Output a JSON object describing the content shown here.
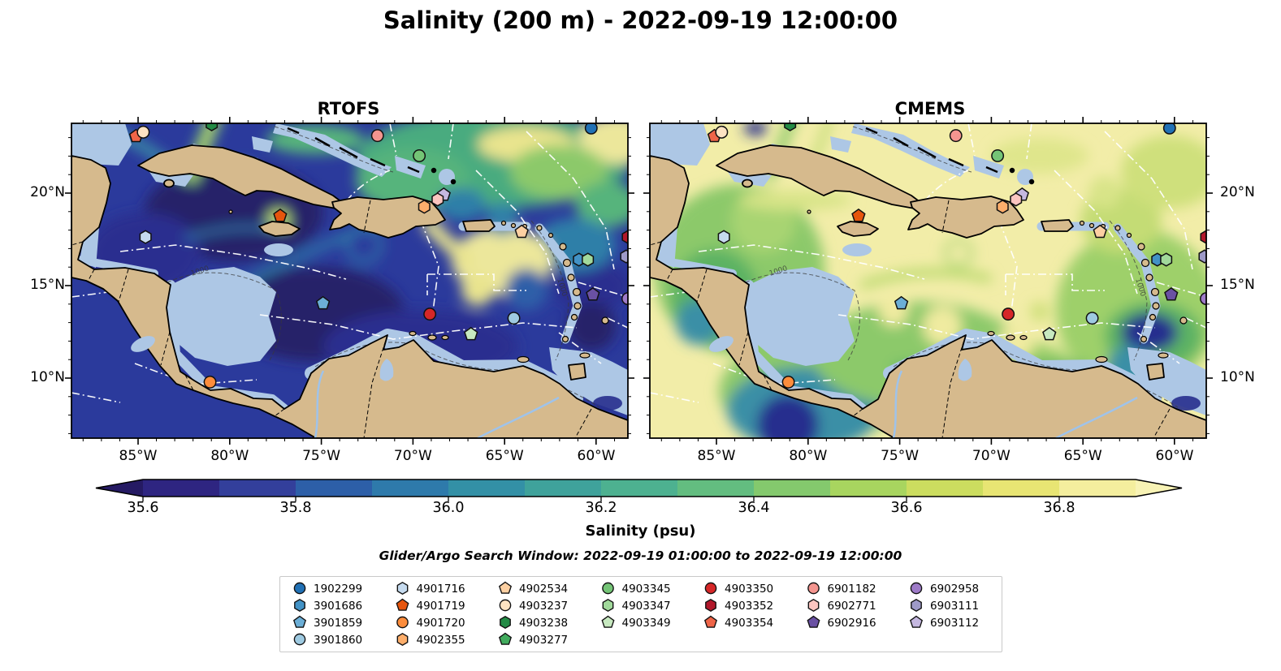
{
  "title": "Salinity (200 m) - 2022-09-19 12:00:00",
  "subtitle": "Glider/Argo Search Window: 2022-09-19 01:00:00 to 2022-09-19 12:00:00",
  "panels": [
    {
      "title": "RTOFS"
    },
    {
      "title": "CMEMS"
    }
  ],
  "axis": {
    "x_tick_labels": [
      "85°W",
      "80°W",
      "75°W",
      "70°W",
      "65°W",
      "60°W"
    ],
    "y_tick_labels": [
      "20°N",
      "15°N",
      "10°N"
    ]
  },
  "colorbar": {
    "label": "Salinity (psu)",
    "tick_labels": [
      "35.6",
      "35.8",
      "36.0",
      "36.2",
      "36.4",
      "36.6",
      "36.8"
    ],
    "range_psu": [
      35.6,
      36.9
    ],
    "segment_colors": [
      "#2e2581",
      "#333f9b",
      "#2d5fa8",
      "#2e7aab",
      "#3390a6",
      "#3fa29b",
      "#4db190",
      "#63bd80",
      "#84c96d",
      "#a8d55f",
      "#ccdd5f",
      "#e8e573",
      "#f4ee9e"
    ],
    "under_arrow_color": "#251a63",
    "over_arrow_color": "#f8f3b5"
  },
  "map_colors": {
    "land": "#d6ba8d",
    "shallow_shelf": "#adc7e5",
    "coastline": "#000000",
    "maritime_boundary_lines": "#ffffff",
    "rtofs_ocean_base": "#2b3a9c",
    "cmems_ocean_base": "#f2eda8",
    "pacific_deep": "#251a63"
  },
  "legend": {
    "column_counts": [
      4,
      4,
      4,
      3,
      3,
      3,
      3
    ],
    "entries": [
      {
        "id": "1902299",
        "marker": "circle",
        "color": "#2171b5"
      },
      {
        "id": "3901686",
        "marker": "hexagon",
        "color": "#4292c6"
      },
      {
        "id": "3901859",
        "marker": "pentagon",
        "color": "#6baed6"
      },
      {
        "id": "3901860",
        "marker": "circle",
        "color": "#9ecae1"
      },
      {
        "id": "4901716",
        "marker": "hexagon",
        "color": "#c6dbef"
      },
      {
        "id": "4901719",
        "marker": "pentagon",
        "color": "#e6550d"
      },
      {
        "id": "4901720",
        "marker": "circle",
        "color": "#fd8d3c"
      },
      {
        "id": "4902355",
        "marker": "hexagon",
        "color": "#fdae6b"
      },
      {
        "id": "4902534",
        "marker": "pentagon",
        "color": "#fdd0a2"
      },
      {
        "id": "4903237",
        "marker": "circle",
        "color": "#fde3c3"
      },
      {
        "id": "4903238",
        "marker": "hexagon",
        "color": "#238b45"
      },
      {
        "id": "4903277",
        "marker": "pentagon",
        "color": "#41ab5d"
      },
      {
        "id": "4903345",
        "marker": "circle",
        "color": "#74c476"
      },
      {
        "id": "4903347",
        "marker": "hexagon",
        "color": "#a1d99b"
      },
      {
        "id": "4903349",
        "marker": "pentagon",
        "color": "#c7e9c0"
      },
      {
        "id": "4903350",
        "marker": "circle",
        "color": "#d62728"
      },
      {
        "id": "4903352",
        "marker": "hexagon",
        "color": "#b2182b"
      },
      {
        "id": "4903354",
        "marker": "pentagon",
        "color": "#ef6548"
      },
      {
        "id": "6901182",
        "marker": "circle",
        "color": "#f4958f"
      },
      {
        "id": "6902771",
        "marker": "hexagon",
        "color": "#fbc5c0"
      },
      {
        "id": "6902916",
        "marker": "pentagon",
        "color": "#6a51a3"
      },
      {
        "id": "6902958",
        "marker": "circle",
        "color": "#9e7bc8"
      },
      {
        "id": "6903111",
        "marker": "hexagon",
        "color": "#9e9ac8"
      },
      {
        "id": "6903112",
        "marker": "pentagon",
        "color": "#c5b8e0"
      }
    ]
  },
  "chart_data": [
    {
      "type": "heatmap",
      "name": "RTOFS",
      "variable": "salinity at 200 m (psu)",
      "time": "2022-09-19 12:00:00",
      "lon_range_deg_w": [
        88.6,
        58.4
      ],
      "lat_range_deg_n": [
        6.8,
        23.8
      ],
      "color_range_psu": [
        35.6,
        36.9
      ],
      "summary": "Caribbean basin mostly fresh 35.6-36.0 psu (dark blue) with saltier 36.3-36.9 green/yellow filaments and eddies northeast of Hispaniola, through Mona Passage and the eastern Caribbean; deepest-fresh (<35.6) Pacific and Grenada-basin patches."
    },
    {
      "type": "heatmap",
      "name": "CMEMS",
      "variable": "salinity at 200 m (psu)",
      "time": "2022-09-19 12:00:00",
      "lon_range_deg_w": [
        88.6,
        58.4
      ],
      "lat_range_deg_n": [
        6.8,
        23.8
      ],
      "color_range_psu": [
        35.6,
        36.9
      ],
      "summary": "Much saltier analysis, mostly >36.8 psu (pale yellow) with fresher 36.3-36.6 green patches in the Gulf of Honduras, southwest Caribbean, Panama Bight and eastern Caribbean, plus a fresh (<35.8) core near Tobago."
    },
    {
      "type": "scatter",
      "name": "Glider/Argo floats in search window",
      "points": [
        {
          "id": "4903354",
          "marker": "pentagon",
          "color": "#ef6548",
          "lon_w": 85.2,
          "lat_n": 23.1,
          "fx": 0.116,
          "fy": 0.041
        },
        {
          "id": "4903237",
          "marker": "circle",
          "color": "#fde3c3",
          "lon_w": 84.7,
          "lat_n": 23.3,
          "fx": 0.129,
          "fy": 0.028
        },
        {
          "id": "4903238",
          "marker": "hexagon",
          "color": "#238b45",
          "lon_w": 81.0,
          "lat_n": 23.8,
          "fx": 0.252,
          "fy": 0.003
        },
        {
          "id": "6901182",
          "marker": "circle",
          "color": "#f4958f",
          "lon_w": 71.9,
          "lat_n": 23.1,
          "fx": 0.55,
          "fy": 0.039
        },
        {
          "id": "4903345",
          "marker": "circle",
          "color": "#74c476",
          "lon_w": 69.7,
          "lat_n": 22.0,
          "fx": 0.625,
          "fy": 0.103
        },
        {
          "id": "1902299",
          "marker": "circle",
          "color": "#2171b5",
          "lon_w": 60.3,
          "lat_n": 23.5,
          "fx": 0.934,
          "fy": 0.015
        },
        {
          "id": "6903112",
          "marker": "pentagon",
          "color": "#c5b8e0",
          "lon_w": 68.3,
          "lat_n": 19.9,
          "fx": 0.669,
          "fy": 0.227
        },
        {
          "id": "6902771",
          "marker": "hexagon",
          "color": "#fbc5c0",
          "lon_w": 68.7,
          "lat_n": 19.7,
          "fx": 0.658,
          "fy": 0.242
        },
        {
          "id": "4902355",
          "marker": "hexagon",
          "color": "#fdae6b",
          "lon_w": 69.4,
          "lat_n": 19.3,
          "fx": 0.634,
          "fy": 0.265
        },
        {
          "id": "4901719",
          "marker": "pentagon",
          "color": "#e6550d",
          "lon_w": 77.3,
          "lat_n": 18.8,
          "fx": 0.375,
          "fy": 0.294
        },
        {
          "id": "4901716",
          "marker": "hexagon",
          "color": "#c6dbef",
          "lon_w": 84.6,
          "lat_n": 17.7,
          "fx": 0.133,
          "fy": 0.361
        },
        {
          "id": "4902534",
          "marker": "pentagon",
          "color": "#fdd0a2",
          "lon_w": 64.1,
          "lat_n": 17.9,
          "fx": 0.809,
          "fy": 0.345
        },
        {
          "id": "4903352",
          "marker": "hexagon",
          "color": "#b2182b",
          "lon_w": 58.4,
          "lat_n": 17.7,
          "fx": 1.0,
          "fy": 0.361
        },
        {
          "id": "3901686",
          "marker": "hexagon",
          "color": "#4292c6",
          "lon_w": 61.0,
          "lat_n": 16.4,
          "fx": 0.912,
          "fy": 0.433
        },
        {
          "id": "4903347",
          "marker": "hexagon",
          "color": "#a1d99b",
          "lon_w": 60.5,
          "lat_n": 16.4,
          "fx": 0.928,
          "fy": 0.433
        },
        {
          "id": "6903111",
          "marker": "hexagon",
          "color": "#9e9ac8",
          "lon_w": 58.4,
          "lat_n": 16.6,
          "fx": 0.997,
          "fy": 0.423
        },
        {
          "id": "3901859",
          "marker": "pentagon",
          "color": "#6baed6",
          "lon_w": 74.9,
          "lat_n": 14.1,
          "fx": 0.452,
          "fy": 0.572
        },
        {
          "id": "4903350",
          "marker": "circle",
          "color": "#d62728",
          "lon_w": 69.1,
          "lat_n": 13.5,
          "fx": 0.644,
          "fy": 0.606
        },
        {
          "id": "4903349",
          "marker": "pentagon",
          "color": "#c7e9c0",
          "lon_w": 66.8,
          "lat_n": 12.4,
          "fx": 0.718,
          "fy": 0.67
        },
        {
          "id": "3901860",
          "marker": "circle",
          "color": "#9ecae1",
          "lon_w": 64.5,
          "lat_n": 13.3,
          "fx": 0.795,
          "fy": 0.619
        },
        {
          "id": "6902916",
          "marker": "pentagon",
          "color": "#6a51a3",
          "lon_w": 60.2,
          "lat_n": 14.5,
          "fx": 0.937,
          "fy": 0.544
        },
        {
          "id": "6902958",
          "marker": "circle",
          "color": "#9e7bc8",
          "lon_w": 58.4,
          "lat_n": 14.3,
          "fx": 1.0,
          "fy": 0.557
        },
        {
          "id": "4901720",
          "marker": "circle",
          "color": "#fd8d3c",
          "lon_w": 81.1,
          "lat_n": 9.8,
          "fx": 0.249,
          "fy": 0.822
        }
      ]
    }
  ]
}
